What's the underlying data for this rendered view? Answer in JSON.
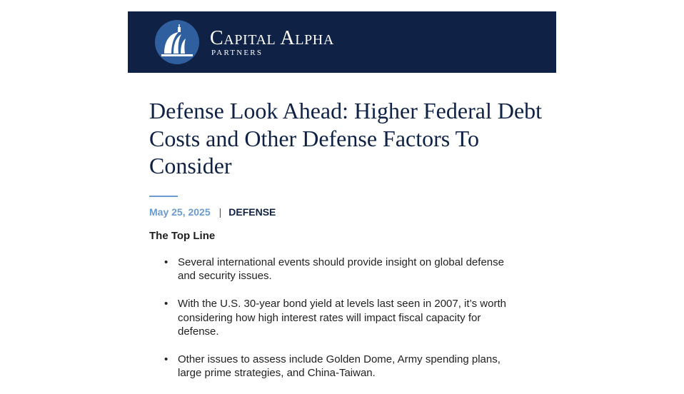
{
  "header": {
    "brand_name": "Capital Alpha",
    "brand_sub": "PARTNERS",
    "logo_icon": "capitol-dome-icon",
    "background_color": "#0f2246"
  },
  "article": {
    "title": "Defense Look Ahead: Higher Federal Debt Costs and Other Defense Factors To Consider",
    "date": "May 25, 2025",
    "separator": "|",
    "category": "DEFENSE",
    "section_heading": "The Top Line",
    "bullets": [
      "Several international events should provide insight on global defense and security issues.",
      "With the U.S. 30-year bond yield at levels last seen in 2007, it’s worth considering how high interest rates will impact fiscal capacity for defense.",
      "Other issues to assess include Golden Dome, Army spending plans, large prime strategies, and China-Taiwan."
    ],
    "accent_color": "#6a9bd1",
    "title_color": "#0f2246"
  }
}
